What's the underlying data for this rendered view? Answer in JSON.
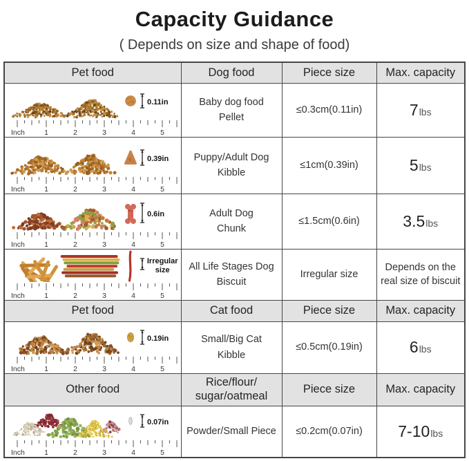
{
  "title": "Capacity Guidance",
  "subtitle": "( Depends on size and shape of food)",
  "colors": {
    "header_bg": "#e2e2e2",
    "border": "#454545",
    "text": "#2e2e2e",
    "ruler_tick": "#555555",
    "bracket": "#222222"
  },
  "ruler": {
    "label": "Inch",
    "marks": [
      "1",
      "2",
      "3",
      "4",
      "5"
    ]
  },
  "headers": [
    {
      "cols": [
        "Pet food",
        "Dog food",
        "Piece size",
        "Max. capacity"
      ]
    },
    {
      "cols": [
        "Pet food",
        "Cat food",
        "Piece size",
        "Max. capacity"
      ]
    },
    {
      "cols": [
        "Other food",
        [
          "Rice/flour/",
          "sugar/oatmeal"
        ],
        "Piece size",
        "Max. capacity"
      ]
    }
  ],
  "rows": [
    {
      "food_label": [
        "Baby dog food",
        "Pellet"
      ],
      "piece_size": "≤0.3cm(0.11in)",
      "piece_label": "0.11in",
      "capacity": {
        "value": "7",
        "unit": "lbs"
      },
      "image": {
        "name": "baby-pellet-piles",
        "piece_icon": "pellet-icon",
        "style": "two-piles-fine",
        "pile_colors": [
          "#a9752f",
          "#c2903f",
          "#8a5a22",
          "#b78238",
          "#6f4418"
        ],
        "piece_color": "#d18a3f"
      }
    },
    {
      "food_label": [
        "Puppy/Adult Dog",
        "Kibble"
      ],
      "piece_size": "≤1cm(0.39in)",
      "piece_label": "0.39in",
      "capacity": {
        "value": "5",
        "unit": "lbs"
      },
      "image": {
        "name": "kibble-piles",
        "piece_icon": "triangle-kibble-icon",
        "style": "two-piles-kibble",
        "pile_colors": [
          "#c08438",
          "#a86b28",
          "#d09a4f",
          "#96601f"
        ],
        "piece_color": "#c8834a"
      }
    },
    {
      "food_label": [
        "Adult Dog",
        "Chunk"
      ],
      "piece_size": "≤1.5cm(0.6in)",
      "piece_label": "0.6in",
      "capacity": {
        "value": "3.5",
        "unit": "lbs"
      },
      "image": {
        "name": "chunk-piles",
        "piece_icon": "bone-chunk-icon",
        "style": "kibble-and-chunks",
        "pile_colors": [
          "#a4562d",
          "#8a4526",
          "#bf6b3a",
          "#7a3c20"
        ],
        "pile2_colors": [
          "#c07b3a",
          "#90a048",
          "#d3b44c",
          "#d4806a",
          "#a95a30"
        ],
        "piece_color": "#d4695a"
      }
    },
    {
      "food_label": [
        "All Life Stages Dog",
        "Biscuit"
      ],
      "piece_size": "Irregular size",
      "piece_label": [
        "Irregular",
        "size"
      ],
      "capacity": {
        "text": [
          "Depends on the",
          "real size of biscuit"
        ]
      },
      "image": {
        "name": "biscuit-sticks",
        "piece_icon": "biscuit-stick-icon",
        "style": "jerky-and-sticks",
        "pile_colors": [
          "#d0913b",
          "#c07f2f",
          "#e0a852"
        ],
        "pile2_colors": [
          "#b03228",
          "#d9b14a",
          "#7f9f3b",
          "#c33a2c",
          "#c89a4e",
          "#a52c24",
          "#8f5b30"
        ],
        "piece_color": "#b5342a"
      }
    },
    {
      "food_label": [
        "Small/Big Cat",
        "Kibble"
      ],
      "piece_size": "≤0.5cm(0.19in)",
      "piece_label": "0.19in",
      "capacity": {
        "value": "6",
        "unit": "lbs"
      },
      "image": {
        "name": "cat-kibble-piles",
        "piece_icon": "oval-kibble-icon",
        "style": "two-piles-cat",
        "pile_colors": [
          "#9c6a33",
          "#c08442",
          "#6a4520",
          "#d29a55",
          "#8a4a28"
        ],
        "piece_color": "#d2a13f"
      }
    },
    {
      "food_label": "Powder/Small Piece",
      "piece_size": "≤0.2cm(0.07in)",
      "piece_label": "0.07in",
      "capacity": {
        "value": "7-10",
        "unit": "lbs"
      },
      "image": {
        "name": "grain-piles",
        "piece_icon": "grain-icon",
        "style": "grain-cluster",
        "subpiles": [
          {
            "colors": [
              "#8e3038",
              "#a8454c",
              "#7a262c"
            ]
          },
          {
            "colors": [
              "#e3dcc8",
              "#d2c9b0",
              "#b8ad90"
            ]
          },
          {
            "colors": [
              "#85a24b",
              "#71923c",
              "#97b25c"
            ]
          },
          {
            "colors": [
              "#ddc348",
              "#cdb236",
              "#e8d35c"
            ]
          },
          {
            "colors": [
              "#c7989a",
              "#b5777a",
              "#8e3842"
            ]
          }
        ],
        "piece_color": "#dddddd"
      }
    }
  ]
}
